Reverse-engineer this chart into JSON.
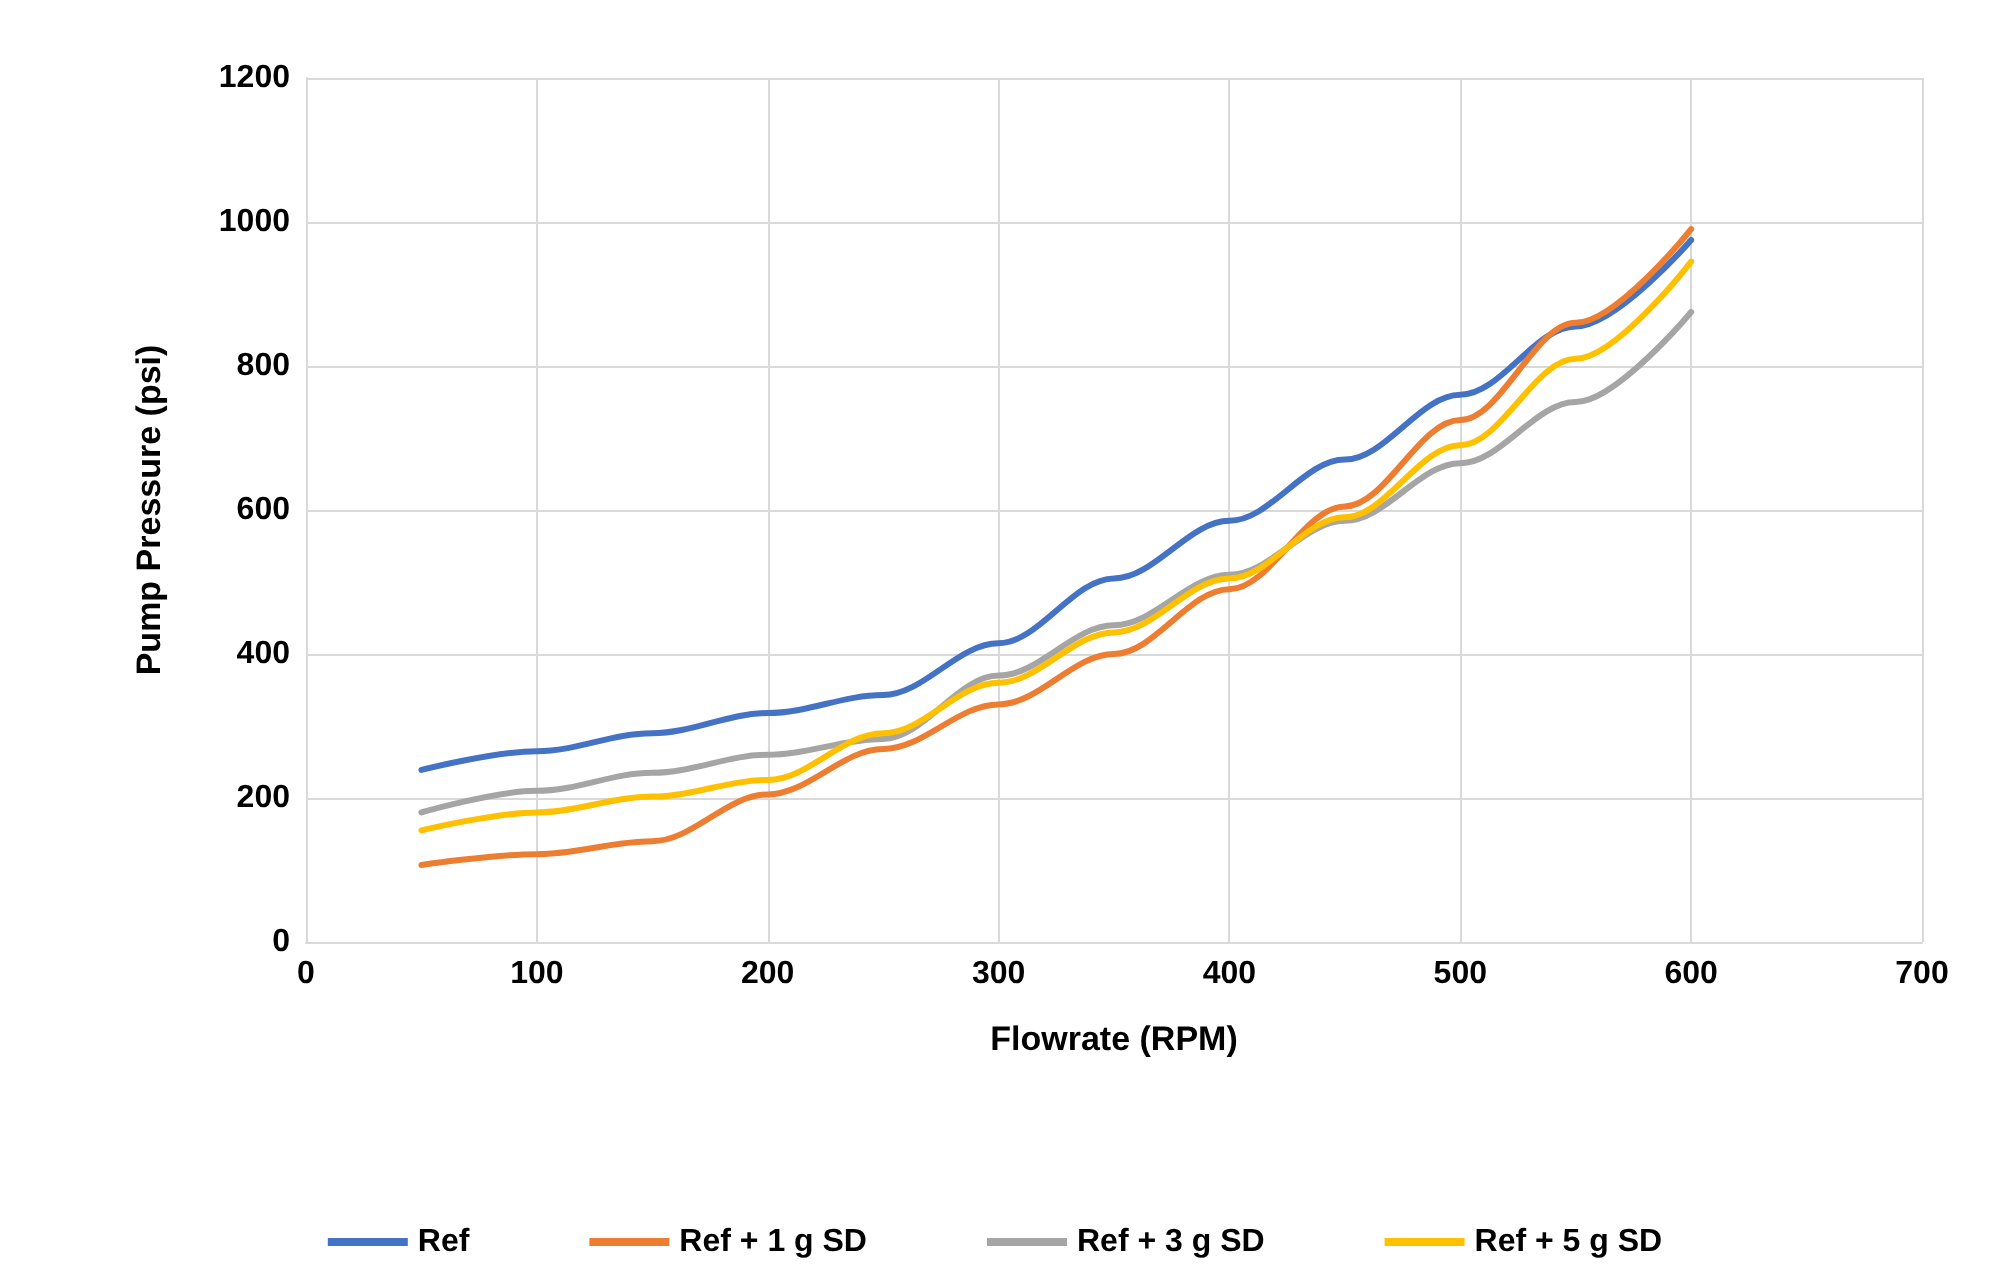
{
  "chart_data": {
    "type": "line",
    "xlabel": "Flowrate (RPM)",
    "ylabel": "Pump Pressure (psi)",
    "x": [
      50,
      100,
      150,
      200,
      250,
      300,
      350,
      400,
      450,
      500,
      550,
      600
    ],
    "series": [
      {
        "name": "Ref",
        "color": "#4472c4",
        "values": [
          239,
          265,
          290,
          318,
          343,
          415,
          505,
          585,
          670,
          760,
          855,
          975
        ]
      },
      {
        "name": "Ref + 1 g SD",
        "color": "#ed7d31",
        "values": [
          107,
          122,
          140,
          205,
          268,
          330,
          400,
          490,
          605,
          725,
          860,
          990
        ]
      },
      {
        "name": "Ref + 3 g SD",
        "color": "#a5a5a5",
        "values": [
          180,
          210,
          235,
          260,
          282,
          370,
          440,
          510,
          585,
          665,
          750,
          875
        ]
      },
      {
        "name": "Ref + 5 g SD",
        "color": "#ffc000",
        "values": [
          155,
          180,
          202,
          225,
          290,
          360,
          430,
          505,
          590,
          690,
          810,
          945
        ]
      }
    ],
    "xlim": [
      0,
      700
    ],
    "xticks": [
      0,
      100,
      200,
      300,
      400,
      500,
      600,
      700
    ],
    "ylim": [
      0,
      1200
    ],
    "yticks": [
      0,
      200,
      400,
      600,
      800,
      1000,
      1200
    ],
    "grid": true,
    "legend": "bottom",
    "marker": "none",
    "line_style": "solid"
  }
}
